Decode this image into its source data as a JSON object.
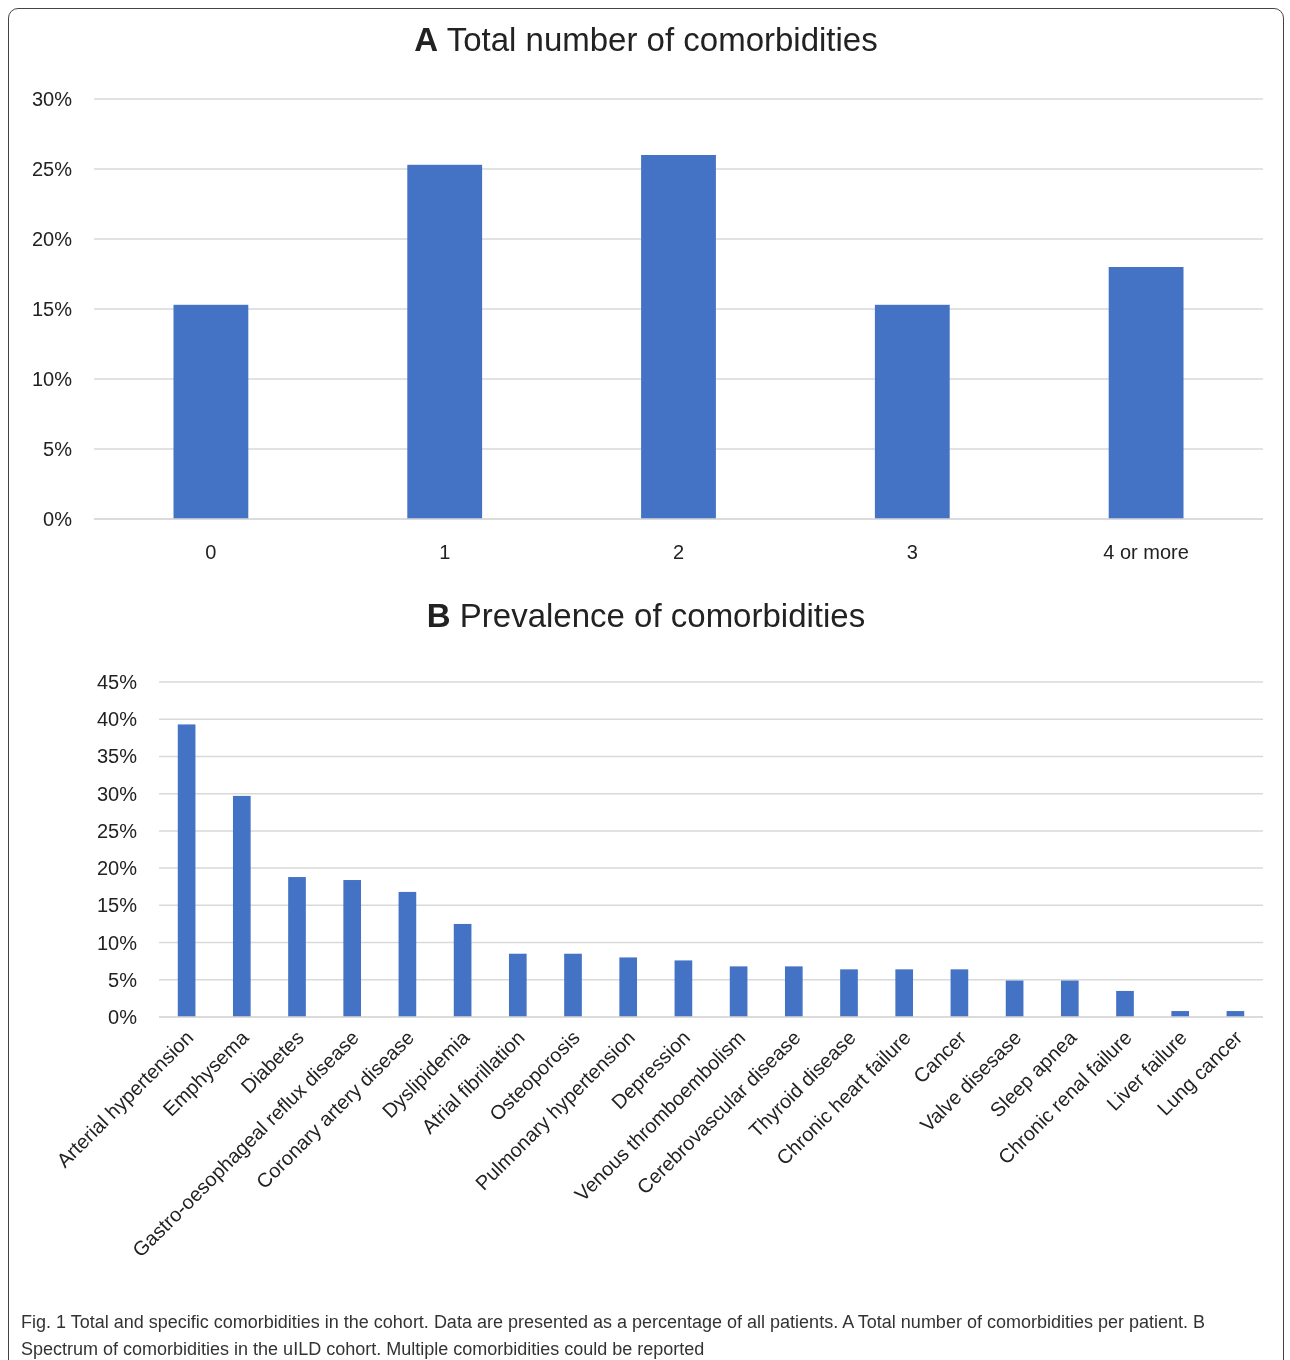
{
  "chart_data": [
    {
      "type": "bar",
      "title": "A Total number of comorbidities",
      "categories": [
        "0",
        "1",
        "2",
        "3",
        "4 or more"
      ],
      "values": [
        15.3,
        25.3,
        26.0,
        15.3,
        18.0
      ],
      "color": "#4472c4",
      "ylim": [
        0,
        30
      ],
      "yticks": [
        {
          "value": 0,
          "label": "0%"
        },
        {
          "value": 5,
          "label": "5%"
        },
        {
          "value": 10,
          "label": "10%"
        },
        {
          "value": 15,
          "label": "15%"
        },
        {
          "value": 20,
          "label": "20%"
        },
        {
          "value": 25,
          "label": "25%"
        },
        {
          "value": 30,
          "label": "30%"
        }
      ],
      "grid": "y"
    },
    {
      "type": "bar",
      "title": "B Prevalence of comorbidities",
      "categories": [
        "Arterial hypertension",
        "Emphysema",
        "Diabetes",
        "Gastro-oesophageal reflux disease",
        "Coronary artery disease",
        "Dyslipidemia",
        "Atrial fibrillation",
        "Osteoporosis",
        "Pulmonary hypertension",
        "Depression",
        "Venous thromboembolism",
        "Cerebrovascular disease",
        "Thyroid disease",
        "Chronic heart failure",
        "Cancer",
        "Valve disesase",
        "Sleep apnea",
        "Chronic renal failure",
        "Liver failure",
        "Lung cancer"
      ],
      "values": [
        39.3,
        29.7,
        18.8,
        18.4,
        16.8,
        12.5,
        8.5,
        8.5,
        8.0,
        7.6,
        6.8,
        6.8,
        6.4,
        6.4,
        6.4,
        4.9,
        4.9,
        3.5,
        0.8,
        0.8
      ],
      "color": "#4472c4",
      "ylim": [
        0,
        45
      ],
      "yticks": [
        {
          "value": 0,
          "label": "0%"
        },
        {
          "value": 5,
          "label": "5%"
        },
        {
          "value": 10,
          "label": "10%"
        },
        {
          "value": 15,
          "label": "15%"
        },
        {
          "value": 20,
          "label": "20%"
        },
        {
          "value": 25,
          "label": "25%"
        },
        {
          "value": 30,
          "label": "30%"
        },
        {
          "value": 35,
          "label": "35%"
        },
        {
          "value": 40,
          "label": "40%"
        },
        {
          "value": 45,
          "label": "45%"
        }
      ],
      "grid": "y",
      "annotations": [
        "Fig. 1  Total and specific comorbidities in the cohort. Data are presented as a percentage of all patients. A Total number of comorbidities per patient. B Spectrum of comorbidities in the uILD cohort. Multiple comorbidities could be reported"
      ]
    }
  ]
}
